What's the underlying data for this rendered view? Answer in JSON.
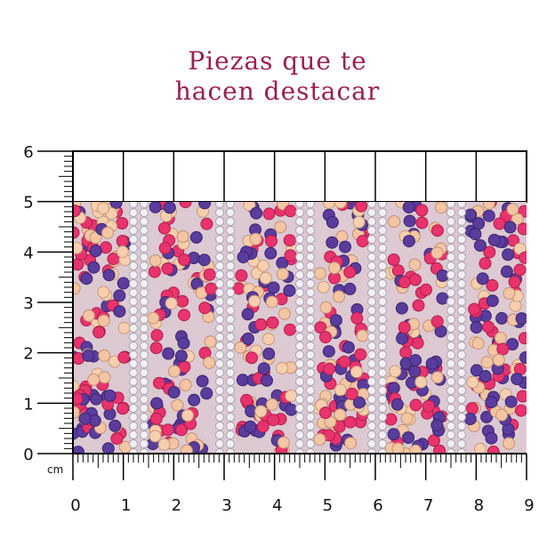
{
  "title": [
    "Piezas que te",
    "hacen destacar"
  ],
  "ruler": {
    "x_labels": [
      0,
      1,
      2,
      3,
      4,
      5,
      6,
      7,
      8,
      9
    ],
    "y_labels": [
      0,
      1,
      2,
      3,
      4,
      5,
      6
    ],
    "unit": "cm"
  }
}
